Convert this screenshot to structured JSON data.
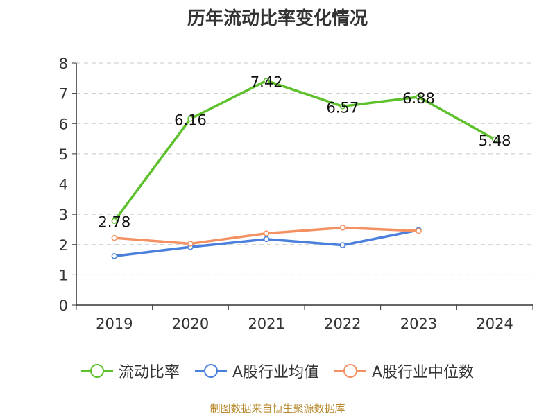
{
  "title": "历年流动比率变化情况",
  "source": "制图数据来自恒生聚源数据库",
  "colors": {
    "current_ratio": "#5cc12a",
    "industry_mean": "#4a7fdb",
    "industry_median": "#f39163",
    "grid": "#c8c8c8",
    "axis": "#333333"
  },
  "chart_data": {
    "type": "line",
    "title": "历年流动比率变化情况",
    "categories": [
      "2019",
      "2020",
      "2021",
      "2022",
      "2023",
      "2024"
    ],
    "ylim": [
      0,
      8
    ],
    "yticks": [
      "0",
      "1",
      "2",
      "3",
      "4",
      "5",
      "6",
      "7",
      "8"
    ],
    "grid": true,
    "legend_position": "bottom",
    "series": [
      {
        "name": "流动比率",
        "values": [
          2.78,
          6.16,
          7.42,
          6.57,
          6.88,
          5.48
        ],
        "labels": [
          "2.78",
          "6.16",
          "7.42",
          "6.57",
          "6.88",
          "5.48"
        ],
        "show_labels": true
      },
      {
        "name": "A股行业均值",
        "values": [
          1.62,
          1.92,
          2.18,
          1.98,
          2.48,
          null
        ],
        "show_labels": false
      },
      {
        "name": "A股行业中位数",
        "values": [
          2.22,
          2.03,
          2.37,
          2.56,
          2.45,
          null
        ],
        "show_labels": false
      }
    ]
  }
}
